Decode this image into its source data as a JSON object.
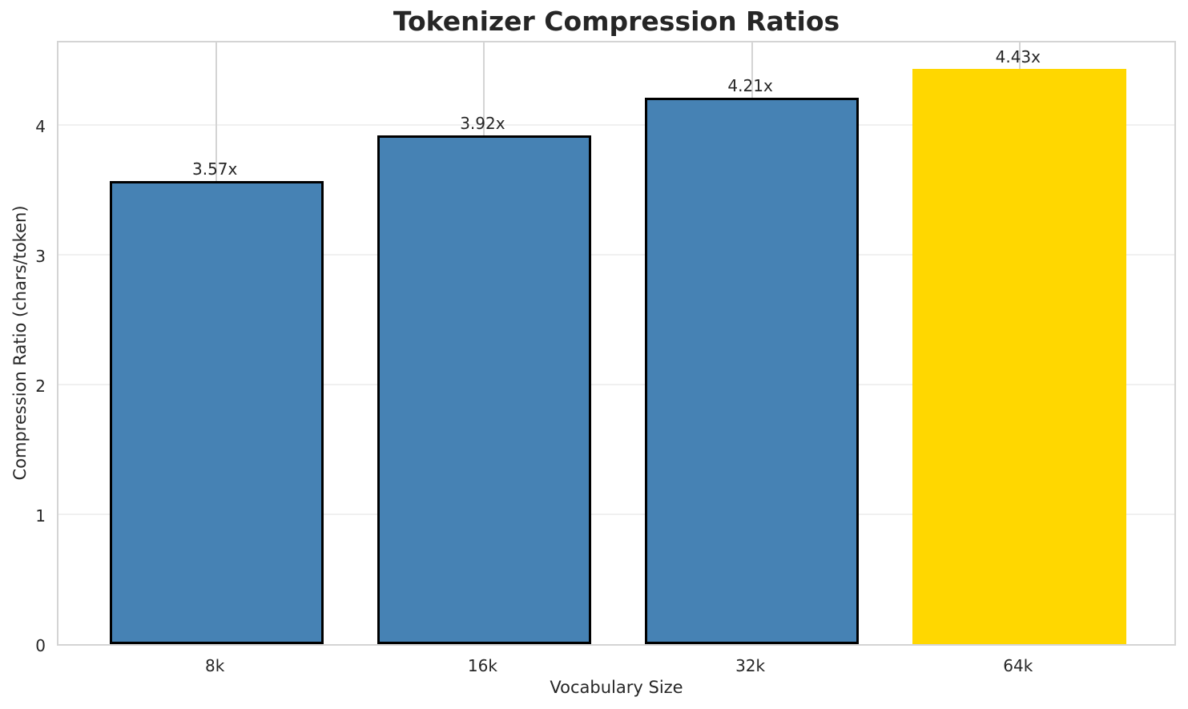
{
  "figure": {
    "background": "#ffffff"
  },
  "chart_data": {
    "type": "bar",
    "title": "Tokenizer Compression Ratios",
    "xlabel": "Vocabulary Size",
    "ylabel": "Compression Ratio (chars/token)",
    "categories": [
      "8k",
      "16k",
      "32k",
      "64k"
    ],
    "values": [
      3.57,
      3.92,
      4.21,
      4.43
    ],
    "bar_labels": [
      "3.57x",
      "3.92x",
      "4.21x",
      "4.43x"
    ],
    "bar_colors": [
      "#4682b4",
      "#4682b4",
      "#4682b4",
      "#ffd700"
    ],
    "bar_edge_colors": [
      "#000000",
      "#000000",
      "#000000",
      "#ffd700"
    ],
    "ytick_labels": [
      "0",
      "1",
      "2",
      "3",
      "4"
    ],
    "ytick_values": [
      0,
      1,
      2,
      3,
      4
    ],
    "ylim": [
      0,
      4.66
    ],
    "xlim": [
      -0.59,
      3.59
    ],
    "bar_width_units": 0.8,
    "grid": true,
    "legend_position": "none",
    "colors": {
      "text": "#262626",
      "bar_default": "#4682b4",
      "bar_highlight": "#ffd700",
      "bar_edge": "#000000",
      "grid_horizontal": "#f0f0f0",
      "grid_vertical": "#d4d4d4",
      "spine": "#d4d4d4"
    }
  }
}
